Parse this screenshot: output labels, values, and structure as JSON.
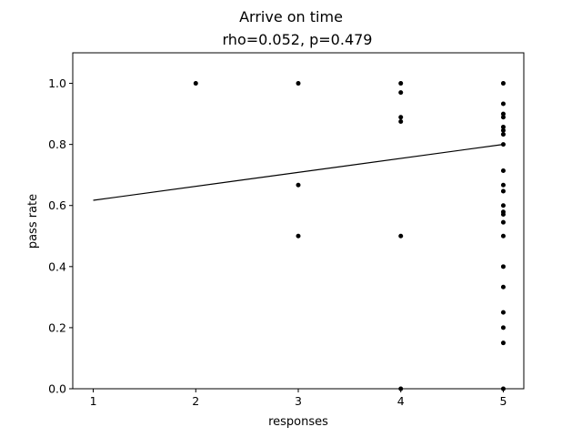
{
  "chart_data": {
    "type": "scatter",
    "title": "Arrive on time",
    "subtitle": "rho=0.052, p=0.479",
    "xlabel": "responses",
    "ylabel": "pass rate",
    "xlim": [
      0.8,
      5.2
    ],
    "ylim": [
      0.0,
      1.1
    ],
    "xticks": [
      1,
      2,
      3,
      4,
      5
    ],
    "yticks": [
      0.0,
      0.2,
      0.4,
      0.6,
      0.8,
      1.0
    ],
    "grid": false,
    "point_color": "#000000",
    "line_color": "#000000",
    "series": [
      {
        "points": [
          [
            2,
            1.0
          ],
          [
            3,
            1.0
          ],
          [
            3,
            0.667
          ],
          [
            3,
            0.5
          ],
          [
            4,
            1.0
          ],
          [
            4,
            0.97
          ],
          [
            4,
            0.889
          ],
          [
            4,
            0.875
          ],
          [
            4,
            0.5
          ],
          [
            4,
            0.0
          ],
          [
            5,
            1.0
          ],
          [
            5,
            0.933
          ],
          [
            5,
            0.9
          ],
          [
            5,
            0.889
          ],
          [
            5,
            0.857
          ],
          [
            5,
            0.846
          ],
          [
            5,
            0.833
          ],
          [
            5,
            0.8
          ],
          [
            5,
            0.714
          ],
          [
            5,
            0.667
          ],
          [
            5,
            0.647
          ],
          [
            5,
            0.6
          ],
          [
            5,
            0.579
          ],
          [
            5,
            0.571
          ],
          [
            5,
            0.545
          ],
          [
            5,
            0.5
          ],
          [
            5,
            0.4
          ],
          [
            5,
            0.333
          ],
          [
            5,
            0.25
          ],
          [
            5,
            0.2
          ],
          [
            5,
            0.15
          ],
          [
            5,
            0.0
          ]
        ]
      }
    ],
    "trendline": {
      "x": [
        1,
        5
      ],
      "y": [
        0.617,
        0.8
      ]
    }
  }
}
